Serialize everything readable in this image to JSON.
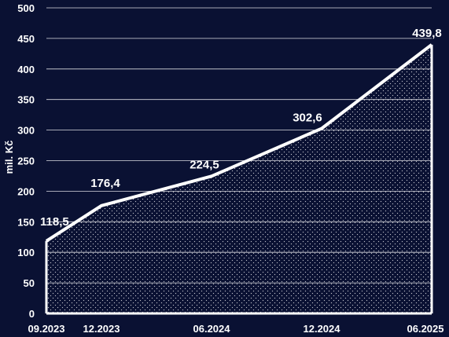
{
  "chart_data": {
    "type": "area",
    "x": [
      "09.2023",
      "12.2023",
      "06.2024",
      "12.2024",
      "06.2025"
    ],
    "x_months": [
      0,
      3,
      9,
      15,
      21
    ],
    "values": [
      118.5,
      176.4,
      224.5,
      302.6,
      439.8
    ],
    "data_labels": [
      "118,5",
      "176,4",
      "224,5",
      "302,6",
      "439,8"
    ],
    "ylabel": "mil. Kč",
    "ylim": [
      0,
      500
    ],
    "yticks": [
      0,
      50,
      100,
      150,
      200,
      250,
      300,
      350,
      400,
      450,
      500
    ],
    "grid": true,
    "colors": {
      "background": "#0a1133",
      "line": "#ffffff",
      "fill": "#0a1133",
      "dots": "#ffffff",
      "grid": "#ffffff"
    }
  }
}
